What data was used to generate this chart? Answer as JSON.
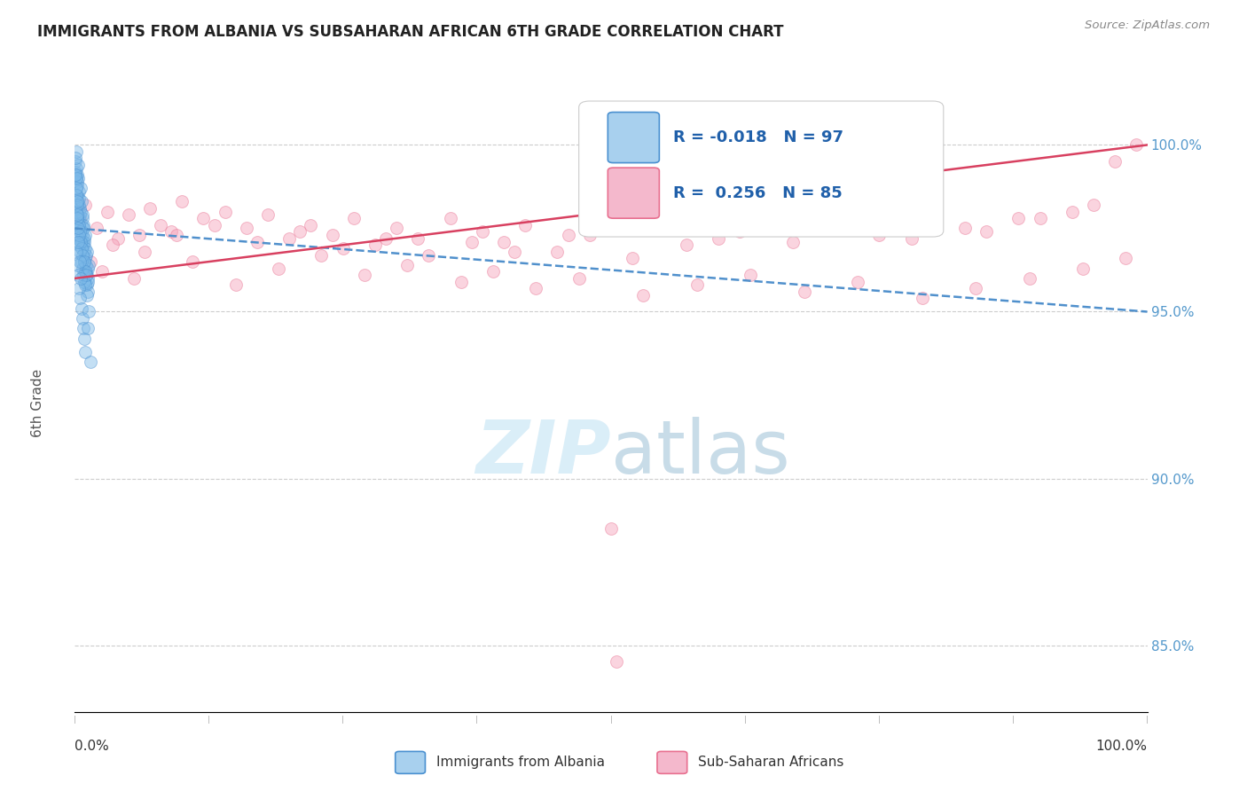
{
  "title": "IMMIGRANTS FROM ALBANIA VS SUBSAHARAN AFRICAN 6TH GRADE CORRELATION CHART",
  "source": "Source: ZipAtlas.com",
  "ylabel": "6th Grade",
  "right_yticks": [
    100.0,
    95.0,
    90.0,
    85.0
  ],
  "right_ytick_labels": [
    "100.0%",
    "95.0%",
    "90.0%",
    "85.0%"
  ],
  "albania_color": "#7ab8e8",
  "subsaharan_color": "#f4a0b8",
  "albania_edge": "#4a90d0",
  "subsaharan_edge": "#e87090",
  "watermark_color": "#daeef8",
  "background_color": "#ffffff",
  "grid_color": "#cccccc",
  "title_color": "#222222",
  "source_color": "#888888",
  "legend_text_color": "#2060aa",
  "legend_box_color_albania": "#a8d0ee",
  "legend_box_color_subsaharan": "#f4b8cc",
  "trend_albania_color": "#5090cc",
  "trend_subsaharan_color": "#d84060",
  "trend_albania_style": "--",
  "trend_subsaharan_style": "-",
  "trend_lw": 1.8,
  "albania_data_x": [
    0.05,
    0.08,
    0.1,
    0.12,
    0.15,
    0.18,
    0.2,
    0.22,
    0.25,
    0.28,
    0.3,
    0.32,
    0.35,
    0.38,
    0.4,
    0.42,
    0.45,
    0.48,
    0.5,
    0.52,
    0.55,
    0.58,
    0.6,
    0.62,
    0.65,
    0.68,
    0.7,
    0.72,
    0.75,
    0.78,
    0.8,
    0.82,
    0.85,
    0.88,
    0.9,
    0.92,
    0.95,
    0.98,
    1.0,
    1.02,
    1.05,
    1.08,
    1.1,
    1.12,
    1.15,
    1.18,
    1.2,
    1.22,
    1.25,
    1.28,
    0.15,
    0.2,
    0.25,
    0.3,
    0.35,
    0.4,
    0.45,
    0.5,
    0.55,
    0.6,
    0.65,
    0.7,
    0.75,
    0.8,
    0.85,
    0.9,
    0.95,
    1.0,
    1.05,
    1.1,
    0.1,
    0.2,
    0.3,
    0.4,
    0.5,
    0.6,
    0.7,
    0.8,
    0.9,
    1.0,
    0.1,
    0.15,
    0.2,
    0.25,
    0.35,
    0.5,
    0.55,
    1.3,
    1.5,
    0.05,
    0.08,
    0.12,
    0.18,
    0.22,
    0.28,
    0.32,
    1.2
  ],
  "albania_data_y": [
    99.5,
    99.2,
    99.8,
    99.0,
    99.3,
    98.8,
    99.1,
    98.5,
    98.9,
    99.4,
    98.3,
    99.0,
    98.6,
    98.2,
    97.8,
    98.4,
    97.5,
    98.1,
    97.9,
    98.7,
    97.2,
    98.0,
    97.6,
    98.3,
    97.4,
    97.8,
    97.1,
    97.9,
    97.3,
    97.6,
    97.0,
    97.5,
    96.8,
    97.2,
    96.5,
    97.1,
    96.9,
    96.6,
    97.3,
    96.4,
    96.2,
    96.7,
    96.1,
    96.8,
    95.8,
    96.3,
    96.0,
    95.6,
    95.9,
    96.4,
    98.0,
    97.5,
    97.8,
    97.2,
    97.6,
    97.0,
    97.4,
    96.8,
    97.1,
    96.5,
    96.9,
    96.3,
    96.7,
    96.1,
    96.5,
    95.9,
    96.2,
    95.8,
    96.1,
    95.5,
    96.8,
    96.4,
    96.1,
    95.7,
    95.4,
    95.1,
    94.8,
    94.5,
    94.2,
    93.8,
    99.0,
    98.5,
    98.2,
    97.8,
    97.3,
    96.5,
    96.0,
    95.0,
    93.5,
    99.6,
    99.1,
    98.7,
    98.3,
    97.9,
    97.5,
    97.1,
    94.5
  ],
  "subsaharan_data_x": [
    0.5,
    1.0,
    2.0,
    3.0,
    4.0,
    5.0,
    6.0,
    7.0,
    8.0,
    9.0,
    10.0,
    12.0,
    14.0,
    16.0,
    18.0,
    20.0,
    22.0,
    24.0,
    26.0,
    28.0,
    30.0,
    32.0,
    35.0,
    38.0,
    40.0,
    42.0,
    45.0,
    48.0,
    50.0,
    55.0,
    60.0,
    65.0,
    70.0,
    75.0,
    80.0,
    85.0,
    90.0,
    95.0,
    99.0,
    1.5,
    3.5,
    6.5,
    9.5,
    13.0,
    17.0,
    21.0,
    25.0,
    29.0,
    33.0,
    37.0,
    41.0,
    46.0,
    52.0,
    57.0,
    62.0,
    67.0,
    72.0,
    78.0,
    83.0,
    88.0,
    93.0,
    97.0,
    2.5,
    5.5,
    11.0,
    15.0,
    19.0,
    23.0,
    27.0,
    31.0,
    36.0,
    39.0,
    43.0,
    47.0,
    53.0,
    58.0,
    63.0,
    68.0,
    73.0,
    79.0,
    84.0,
    89.0,
    94.0,
    98.0,
    50.0,
    50.5
  ],
  "subsaharan_data_y": [
    97.8,
    98.2,
    97.5,
    98.0,
    97.2,
    97.9,
    97.3,
    98.1,
    97.6,
    97.4,
    98.3,
    97.8,
    98.0,
    97.5,
    97.9,
    97.2,
    97.6,
    97.3,
    97.8,
    97.0,
    97.5,
    97.2,
    97.8,
    97.4,
    97.1,
    97.6,
    96.8,
    97.3,
    97.5,
    97.8,
    97.2,
    97.6,
    97.9,
    97.3,
    97.7,
    97.4,
    97.8,
    98.2,
    100.0,
    96.5,
    97.0,
    96.8,
    97.3,
    97.6,
    97.1,
    97.4,
    96.9,
    97.2,
    96.7,
    97.1,
    96.8,
    97.3,
    96.6,
    97.0,
    97.4,
    97.1,
    97.6,
    97.2,
    97.5,
    97.8,
    98.0,
    99.5,
    96.2,
    96.0,
    96.5,
    95.8,
    96.3,
    96.7,
    96.1,
    96.4,
    95.9,
    96.2,
    95.7,
    96.0,
    95.5,
    95.8,
    96.1,
    95.6,
    95.9,
    95.4,
    95.7,
    96.0,
    96.3,
    96.6,
    88.5,
    84.5
  ],
  "xlim": [
    0.0,
    100.0
  ],
  "ylim": [
    83.0,
    101.5
  ],
  "marker_size": 100,
  "marker_alpha": 0.45
}
